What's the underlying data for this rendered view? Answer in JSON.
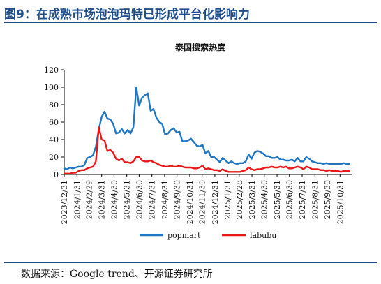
{
  "figure": {
    "title": "图9：在成熟市场泡泡玛特已形成平台化影响力",
    "source": "数据来源：Google trend、开源证券研究所"
  },
  "chart_data": {
    "type": "line",
    "title": "泰国搜索热度",
    "xlabel": "",
    "ylabel": "",
    "ylim": [
      0,
      120
    ],
    "yticks": [
      0,
      20,
      40,
      60,
      80,
      100,
      120
    ],
    "x_start": "2023-12-31",
    "x_end": "2025-11-30",
    "xticks": [
      "2023/12/31",
      "2024/1/31",
      "2024/2/29",
      "2024/3/31",
      "2024/4/30",
      "2024/5/31",
      "2024/6/30",
      "2024/7/31",
      "2024/8/31",
      "2024/9/30",
      "2024/10/31",
      "2024/11/30",
      "2024/12/31",
      "2025/1/31",
      "2025/2/28",
      "2025/3/31",
      "2025/4/30",
      "2025/5/31",
      "2025/6/30",
      "2025/7/31",
      "2025/8/31",
      "2025/9/30",
      "2025/10/31"
    ],
    "legend_position": "bottom",
    "grid": false,
    "series": [
      {
        "name": "popmart",
        "color": "#1f77c4",
        "points": [
          [
            "2023-12-31",
            7
          ],
          [
            "2024-01-07",
            6
          ],
          [
            "2024-01-14",
            8
          ],
          [
            "2024-01-21",
            7
          ],
          [
            "2024-01-28",
            8
          ],
          [
            "2024-02-04",
            9
          ],
          [
            "2024-02-11",
            9
          ],
          [
            "2024-02-18",
            11
          ],
          [
            "2024-02-25",
            19
          ],
          [
            "2024-03-03",
            20
          ],
          [
            "2024-03-10",
            22
          ],
          [
            "2024-03-17",
            32
          ],
          [
            "2024-03-24",
            52
          ],
          [
            "2024-03-31",
            66
          ],
          [
            "2024-04-07",
            72
          ],
          [
            "2024-04-14",
            64
          ],
          [
            "2024-04-21",
            63
          ],
          [
            "2024-04-28",
            58
          ],
          [
            "2024-05-05",
            47
          ],
          [
            "2024-05-12",
            48
          ],
          [
            "2024-05-19",
            52
          ],
          [
            "2024-05-26",
            47
          ],
          [
            "2024-06-02",
            51
          ],
          [
            "2024-06-09",
            47
          ],
          [
            "2024-06-16",
            54
          ],
          [
            "2024-06-23",
            100
          ],
          [
            "2024-06-30",
            79
          ],
          [
            "2024-07-07",
            88
          ],
          [
            "2024-07-14",
            91
          ],
          [
            "2024-07-21",
            93
          ],
          [
            "2024-07-28",
            73
          ],
          [
            "2024-08-04",
            75
          ],
          [
            "2024-08-11",
            65
          ],
          [
            "2024-08-18",
            60
          ],
          [
            "2024-08-25",
            58
          ],
          [
            "2024-09-01",
            46
          ],
          [
            "2024-09-08",
            47
          ],
          [
            "2024-09-15",
            51
          ],
          [
            "2024-09-22",
            53
          ],
          [
            "2024-09-29",
            48
          ],
          [
            "2024-10-06",
            49
          ],
          [
            "2024-10-13",
            38
          ],
          [
            "2024-10-20",
            38
          ],
          [
            "2024-10-27",
            39
          ],
          [
            "2024-11-03",
            41
          ],
          [
            "2024-11-10",
            37
          ],
          [
            "2024-11-17",
            33
          ],
          [
            "2024-11-24",
            32
          ],
          [
            "2024-12-01",
            34
          ],
          [
            "2024-12-08",
            24
          ],
          [
            "2024-12-15",
            27
          ],
          [
            "2024-12-22",
            20
          ],
          [
            "2024-12-29",
            20
          ],
          [
            "2025-01-05",
            17
          ],
          [
            "2025-01-12",
            14
          ],
          [
            "2025-01-19",
            19
          ],
          [
            "2025-01-26",
            16
          ],
          [
            "2025-02-02",
            13
          ],
          [
            "2025-02-09",
            15
          ],
          [
            "2025-02-16",
            13
          ],
          [
            "2025-02-23",
            12
          ],
          [
            "2025-03-02",
            13
          ],
          [
            "2025-03-09",
            13
          ],
          [
            "2025-03-16",
            15
          ],
          [
            "2025-03-23",
            23
          ],
          [
            "2025-03-30",
            18
          ],
          [
            "2025-04-06",
            25
          ],
          [
            "2025-04-13",
            27
          ],
          [
            "2025-04-20",
            26
          ],
          [
            "2025-04-27",
            24
          ],
          [
            "2025-05-04",
            21
          ],
          [
            "2025-05-11",
            21
          ],
          [
            "2025-05-18",
            19
          ],
          [
            "2025-05-25",
            19
          ],
          [
            "2025-06-01",
            20
          ],
          [
            "2025-06-08",
            17
          ],
          [
            "2025-06-15",
            17
          ],
          [
            "2025-06-22",
            16
          ],
          [
            "2025-06-29",
            16
          ],
          [
            "2025-07-06",
            17
          ],
          [
            "2025-07-13",
            15
          ],
          [
            "2025-07-20",
            19
          ],
          [
            "2025-07-27",
            15
          ],
          [
            "2025-08-03",
            15
          ],
          [
            "2025-08-10",
            20
          ],
          [
            "2025-08-17",
            18
          ],
          [
            "2025-08-24",
            15
          ],
          [
            "2025-08-31",
            14
          ],
          [
            "2025-09-07",
            13
          ],
          [
            "2025-09-14",
            13
          ],
          [
            "2025-09-21",
            12
          ],
          [
            "2025-09-28",
            13
          ],
          [
            "2025-10-05",
            12
          ],
          [
            "2025-10-12",
            12
          ],
          [
            "2025-10-19",
            12
          ],
          [
            "2025-10-26",
            12
          ],
          [
            "2025-11-02",
            12
          ],
          [
            "2025-11-09",
            13
          ],
          [
            "2025-11-16",
            12
          ],
          [
            "2025-11-23",
            12
          ]
        ]
      },
      {
        "name": "labubu",
        "color": "#e81818",
        "points": [
          [
            "2023-12-31",
            1
          ],
          [
            "2024-01-07",
            1
          ],
          [
            "2024-01-14",
            1
          ],
          [
            "2024-01-21",
            2
          ],
          [
            "2024-01-28",
            2
          ],
          [
            "2024-02-04",
            4
          ],
          [
            "2024-02-11",
            5
          ],
          [
            "2024-02-18",
            5
          ],
          [
            "2024-02-25",
            7
          ],
          [
            "2024-03-03",
            8
          ],
          [
            "2024-03-10",
            9
          ],
          [
            "2024-03-17",
            15
          ],
          [
            "2024-03-24",
            54
          ],
          [
            "2024-03-31",
            40
          ],
          [
            "2024-04-07",
            39
          ],
          [
            "2024-04-14",
            27
          ],
          [
            "2024-04-21",
            28
          ],
          [
            "2024-04-28",
            25
          ],
          [
            "2024-05-05",
            18
          ],
          [
            "2024-05-12",
            16
          ],
          [
            "2024-05-19",
            18
          ],
          [
            "2024-05-26",
            14
          ],
          [
            "2024-06-02",
            14
          ],
          [
            "2024-06-09",
            13
          ],
          [
            "2024-06-16",
            15
          ],
          [
            "2024-06-23",
            20
          ],
          [
            "2024-06-30",
            20
          ],
          [
            "2024-07-07",
            16
          ],
          [
            "2024-07-14",
            15
          ],
          [
            "2024-07-21",
            15
          ],
          [
            "2024-07-28",
            16
          ],
          [
            "2024-08-04",
            14
          ],
          [
            "2024-08-11",
            13
          ],
          [
            "2024-08-18",
            11
          ],
          [
            "2024-08-25",
            10
          ],
          [
            "2024-09-01",
            9
          ],
          [
            "2024-09-08",
            9
          ],
          [
            "2024-09-15",
            10
          ],
          [
            "2024-09-22",
            9
          ],
          [
            "2024-09-29",
            9
          ],
          [
            "2024-10-06",
            10
          ],
          [
            "2024-10-13",
            9
          ],
          [
            "2024-10-20",
            8
          ],
          [
            "2024-10-27",
            8
          ],
          [
            "2024-11-03",
            8
          ],
          [
            "2024-11-10",
            7
          ],
          [
            "2024-11-17",
            7
          ],
          [
            "2024-11-24",
            8
          ],
          [
            "2024-12-01",
            10
          ],
          [
            "2024-12-08",
            6
          ],
          [
            "2024-12-15",
            7
          ],
          [
            "2024-12-22",
            6
          ],
          [
            "2024-12-29",
            5
          ],
          [
            "2025-01-05",
            5
          ],
          [
            "2025-01-12",
            4
          ],
          [
            "2025-01-19",
            6
          ],
          [
            "2025-01-26",
            4
          ],
          [
            "2025-02-02",
            3
          ],
          [
            "2025-02-09",
            3
          ],
          [
            "2025-02-16",
            3
          ],
          [
            "2025-02-23",
            3
          ],
          [
            "2025-03-02",
            3
          ],
          [
            "2025-03-09",
            4
          ],
          [
            "2025-03-16",
            5
          ],
          [
            "2025-03-23",
            8
          ],
          [
            "2025-03-30",
            6
          ],
          [
            "2025-04-06",
            5
          ],
          [
            "2025-04-13",
            6
          ],
          [
            "2025-04-20",
            6
          ],
          [
            "2025-04-27",
            7
          ],
          [
            "2025-05-04",
            8
          ],
          [
            "2025-05-11",
            8
          ],
          [
            "2025-05-18",
            9
          ],
          [
            "2025-05-25",
            8
          ],
          [
            "2025-06-01",
            8
          ],
          [
            "2025-06-08",
            9
          ],
          [
            "2025-06-15",
            8
          ],
          [
            "2025-06-22",
            9
          ],
          [
            "2025-06-29",
            7
          ],
          [
            "2025-07-06",
            7
          ],
          [
            "2025-07-13",
            8
          ],
          [
            "2025-07-20",
            9
          ],
          [
            "2025-07-27",
            8
          ],
          [
            "2025-08-03",
            6
          ],
          [
            "2025-08-10",
            9
          ],
          [
            "2025-08-17",
            8
          ],
          [
            "2025-08-24",
            6
          ],
          [
            "2025-08-31",
            6
          ],
          [
            "2025-09-07",
            6
          ],
          [
            "2025-09-14",
            5
          ],
          [
            "2025-09-21",
            5
          ],
          [
            "2025-09-28",
            4
          ],
          [
            "2025-10-05",
            5
          ],
          [
            "2025-10-12",
            4
          ],
          [
            "2025-10-19",
            4
          ],
          [
            "2025-10-26",
            4
          ],
          [
            "2025-11-02",
            3
          ],
          [
            "2025-11-09",
            4
          ],
          [
            "2025-11-16",
            4
          ],
          [
            "2025-11-23",
            4
          ]
        ]
      }
    ]
  }
}
